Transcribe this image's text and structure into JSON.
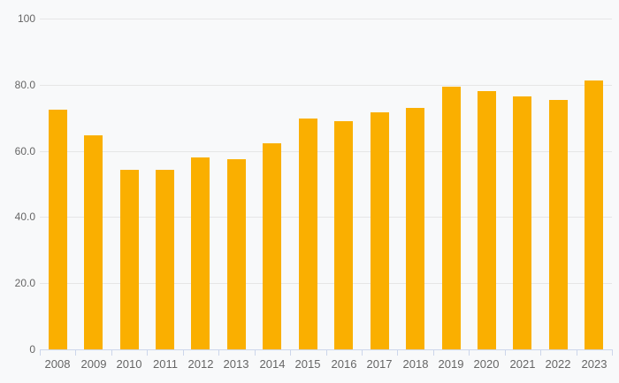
{
  "chart_data": {
    "type": "bar",
    "title": "",
    "xlabel": "",
    "ylabel": "",
    "categories": [
      "2008",
      "2009",
      "2010",
      "2011",
      "2012",
      "2013",
      "2014",
      "2015",
      "2016",
      "2017",
      "2018",
      "2019",
      "2020",
      "2021",
      "2022",
      "2023"
    ],
    "values": [
      72.4,
      64.8,
      54.2,
      54.4,
      57.9,
      57.4,
      62.4,
      69.9,
      69.1,
      71.7,
      72.9,
      79.4,
      78.2,
      76.6,
      75.3,
      81.3
    ],
    "ylim": [
      0,
      100
    ],
    "y_ticks": [
      {
        "value": 100,
        "label": "100"
      },
      {
        "value": 80,
        "label": "80.0"
      },
      {
        "value": 60,
        "label": "60.0"
      },
      {
        "value": 40,
        "label": "40.0"
      },
      {
        "value": 20,
        "label": "20.0"
      },
      {
        "value": 0,
        "label": "0"
      }
    ],
    "grid": true,
    "legend": false,
    "colors": {
      "bar": "#FAAF00",
      "background": "#f8f9fa",
      "gridline": "#e6e6e6",
      "axis_line": "#ccd6eb",
      "label_text": "#666666"
    }
  }
}
